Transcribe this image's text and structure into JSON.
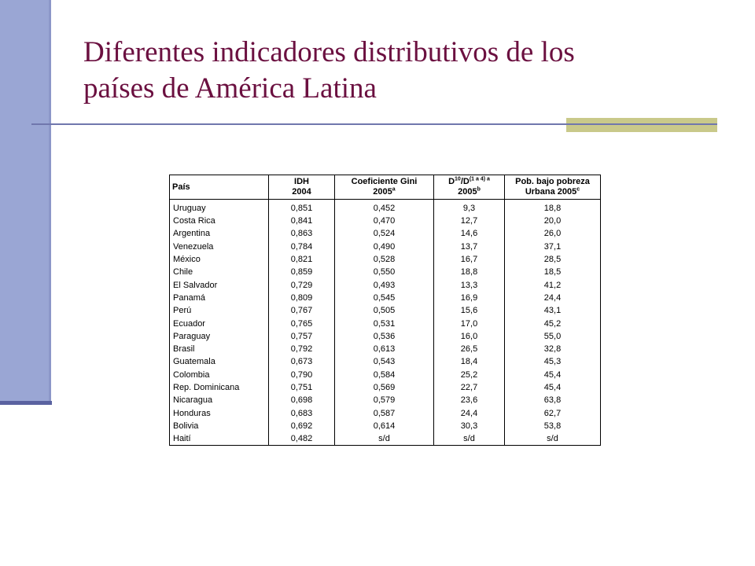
{
  "title": {
    "line1": "Diferentes indicadores distributivos de los",
    "line2": "países de América Latina"
  },
  "table": {
    "headers": {
      "country": "País",
      "idh_line1": "IDH",
      "idh_line2": "2004",
      "gini_line1": "Coeficiente Gini",
      "gini_line2": "2005",
      "gini_sup": "a",
      "dec_line1_a": "D",
      "dec_sup1": "10",
      "dec_line1_b": "/D",
      "dec_sup2": "(1 a 4) a",
      "dec_line2": "2005",
      "dec_sup3": "b",
      "pov_line1": "Pob. bajo pobreza",
      "pov_line2": "Urbana 2005",
      "pov_sup": "c"
    },
    "rows": [
      {
        "country": "Uruguay",
        "idh": "0,851",
        "gini": "0,452",
        "dec": "9,3",
        "pov": "18,8"
      },
      {
        "country": "Costa Rica",
        "idh": "0,841",
        "gini": "0,470",
        "dec": "12,7",
        "pov": "20,0"
      },
      {
        "country": "Argentina",
        "idh": "0,863",
        "gini": "0,524",
        "dec": "14,6",
        "pov": "26,0"
      },
      {
        "country": "Venezuela",
        "idh": "0,784",
        "gini": "0,490",
        "dec": "13,7",
        "pov": "37,1"
      },
      {
        "country": "México",
        "idh": "0,821",
        "gini": "0,528",
        "dec": "16,7",
        "pov": "28,5"
      },
      {
        "country": "Chile",
        "idh": "0,859",
        "gini": "0,550",
        "dec": "18,8",
        "pov": "18,5"
      },
      {
        "country": "El Salvador",
        "idh": "0,729",
        "gini": "0,493",
        "dec": "13,3",
        "pov": "41,2"
      },
      {
        "country": "Panamá",
        "idh": "0,809",
        "gini": "0,545",
        "dec": "16,9",
        "pov": "24,4"
      },
      {
        "country": "Perú",
        "idh": "0,767",
        "gini": "0,505",
        "dec": "15,6",
        "pov": "43,1"
      },
      {
        "country": "Ecuador",
        "idh": "0,765",
        "gini": "0,531",
        "dec": "17,0",
        "pov": "45,2"
      },
      {
        "country": "Paraguay",
        "idh": "0,757",
        "gini": "0,536",
        "dec": "16,0",
        "pov": "55,0"
      },
      {
        "country": "Brasil",
        "idh": "0,792",
        "gini": "0,613",
        "dec": "26,5",
        "pov": "32,8"
      },
      {
        "country": "Guatemala",
        "idh": "0,673",
        "gini": "0,543",
        "dec": "18,4",
        "pov": "45,3"
      },
      {
        "country": "Colombia",
        "idh": "0,790",
        "gini": "0,584",
        "dec": "25,2",
        "pov": "45,4"
      },
      {
        "country": "Rep. Dominicana",
        "idh": "0,751",
        "gini": "0,569",
        "dec": "22,7",
        "pov": "45,4"
      },
      {
        "country": "Nicaragua",
        "idh": "0,698",
        "gini": "0,579",
        "dec": "23,6",
        "pov": "63,8"
      },
      {
        "country": "Honduras",
        "idh": "0,683",
        "gini": "0,587",
        "dec": "24,4",
        "pov": "62,7"
      },
      {
        "country": "Bolivia",
        "idh": "0,692",
        "gini": "0,614",
        "dec": "30,3",
        "pov": "53,8"
      },
      {
        "country": "Haití",
        "idh": "0,482",
        "gini": "s/d",
        "dec": "s/d",
        "pov": "s/d"
      }
    ]
  }
}
